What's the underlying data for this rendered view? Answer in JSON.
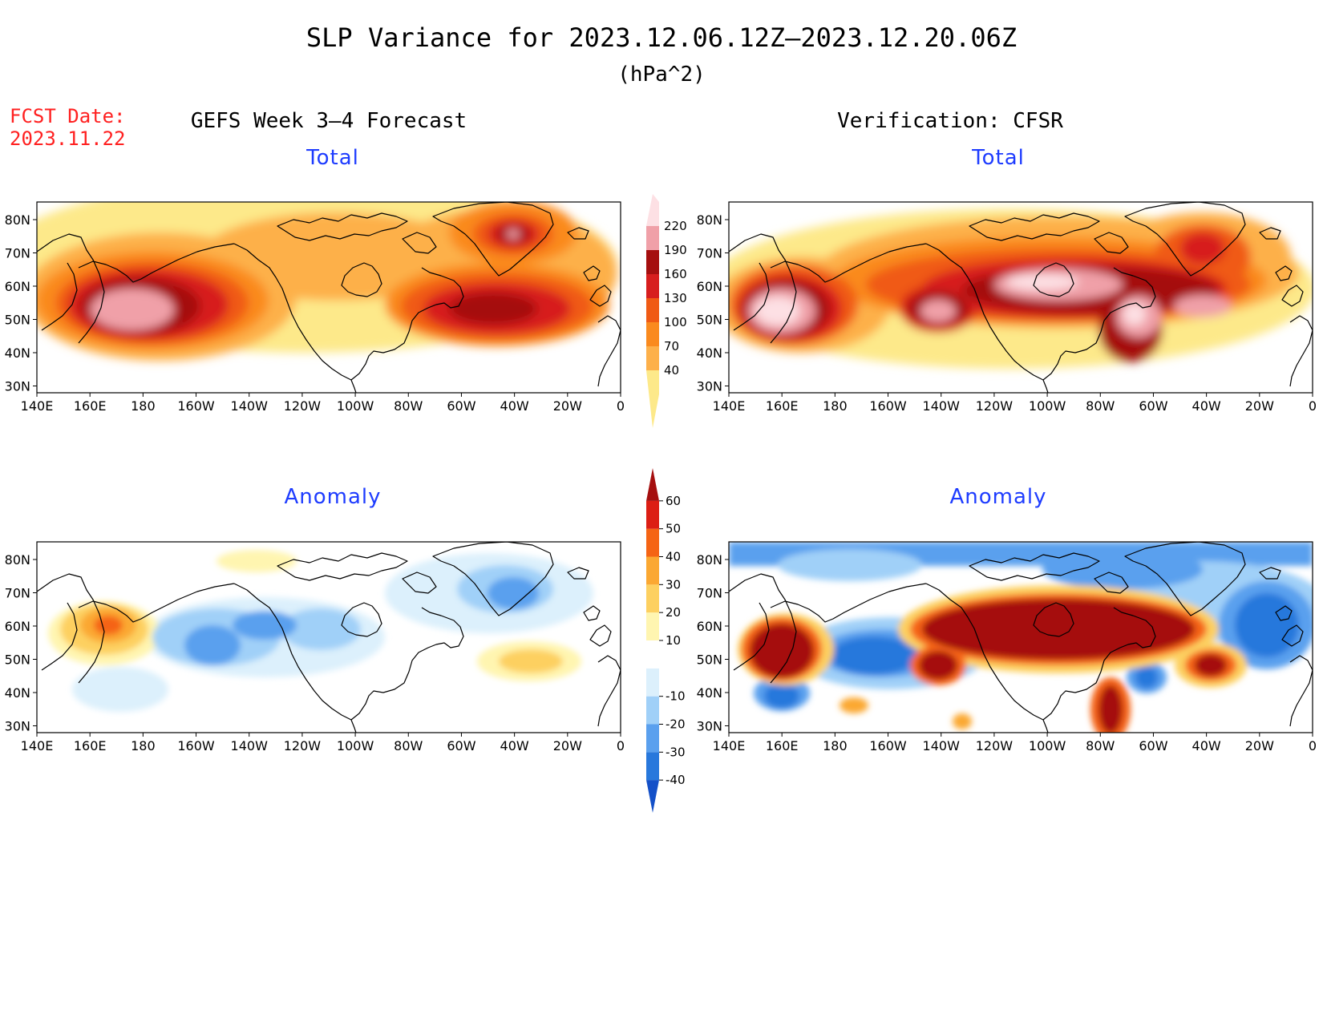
{
  "header": {
    "title": "SLP Variance for 2023.12.06.12Z–2023.12.20.06Z",
    "units": "(hPa^2)",
    "fcst_label": "FCST Date:",
    "fcst_date": "2023.11.22"
  },
  "columns": {
    "left": "GEFS Week 3–4 Forecast",
    "right": "Verification: CFSR"
  },
  "panels": {
    "total_label": "Total",
    "anomaly_label": "Anomaly"
  },
  "axes": {
    "lat_labels": [
      "80N",
      "70N",
      "60N",
      "50N",
      "40N",
      "30N"
    ],
    "lon_labels": [
      "140E",
      "160E",
      "180",
      "160W",
      "140W",
      "120W",
      "100W",
      "80W",
      "60W",
      "40W",
      "20W",
      "0"
    ]
  },
  "colorbars": {
    "total": {
      "levels": [
        "40",
        "70",
        "100",
        "130",
        "160",
        "190",
        "220"
      ],
      "colors": [
        "#fde98a",
        "#fdb04a",
        "#fa8a1e",
        "#f05a14",
        "#d71e1e",
        "#a50f0f",
        "#f0a0a8",
        "#fde0e4"
      ]
    },
    "anomaly": {
      "levels": [
        "-40",
        "-30",
        "-20",
        "-10",
        "10",
        "20",
        "30",
        "40",
        "50",
        "60"
      ],
      "colors": [
        "#1450c8",
        "#2878dc",
        "#5aa0ee",
        "#a0d0f8",
        "#dcf0fc",
        "#ffffff",
        "#fff5b0",
        "#fdd060",
        "#fba832",
        "#f56414",
        "#dc1e14",
        "#a50f0f"
      ]
    }
  },
  "map_regions": {
    "total_gefs": [
      "Pacific storm track maximum near 50N 170E",
      "Atlantic maximum near 50N 50W",
      "Greenland maximum near 75N 40W"
    ],
    "total_cfsr": [
      "Maximum near 50N 160E",
      "Maximum near 50N 140W",
      "Broad maximum over Canada and Hudson Bay",
      "North Atlantic maximum near 50N 35W"
    ],
    "anomaly_gefs": [
      "Positive anomaly near Kamchatka",
      "Negative anomaly Gulf of Alaska",
      "Negative anomaly Greenland",
      "Positive anomaly mid-Atlantic 45N 40W"
    ],
    "anomaly_cfsr": [
      "Large positive anomaly across Canada",
      "Positive anomaly near 55N 160E",
      "Negative anomaly north Pacific",
      "Negative anomaly high Arctic and northeast Atlantic"
    ]
  }
}
